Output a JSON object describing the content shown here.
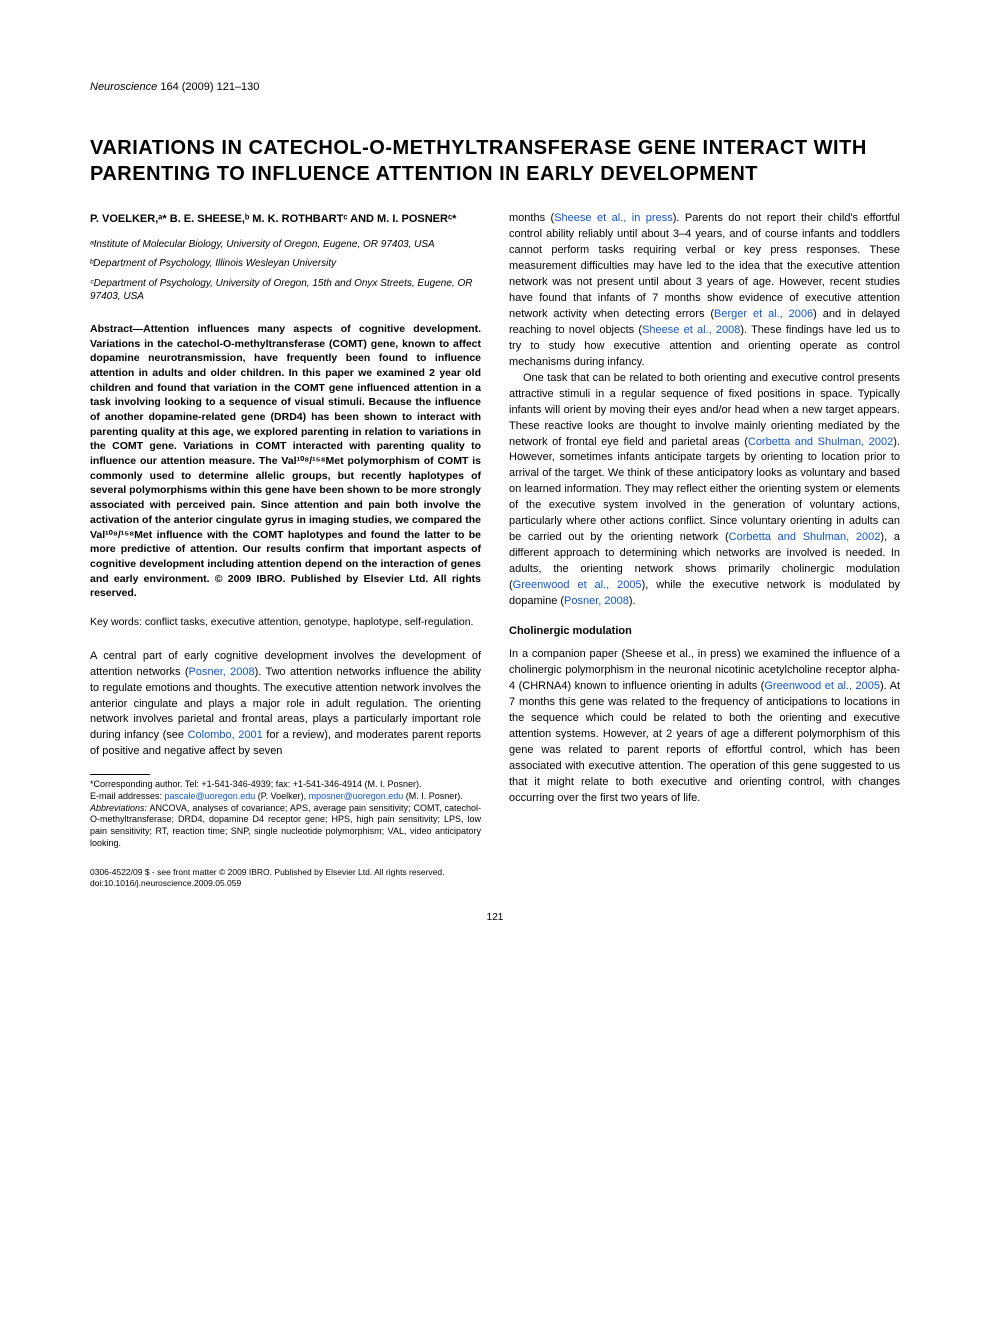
{
  "journal": {
    "name": "Neuroscience",
    "issue": "164 (2009) 121–130"
  },
  "title": "VARIATIONS IN CATECHOL-O-METHYLTRANSFERASE GENE INTERACT WITH PARENTING TO INFLUENCE ATTENTION IN EARLY DEVELOPMENT",
  "authors": "P. VOELKER,ᵃ* B. E. SHEESE,ᵇ M. K. ROTHBARTᶜ AND M. I. POSNERᶜ*",
  "affiliations": {
    "a": "ᵃInstitute of Molecular Biology, University of Oregon, Eugene, OR 97403, USA",
    "b": "ᵇDepartment of Psychology, Illinois Wesleyan University",
    "c": "ᶜDepartment of Psychology, University of Oregon, 15th and Onyx Streets, Eugene, OR 97403, USA"
  },
  "abstract": {
    "label": "Abstract—",
    "text": "Attention influences many aspects of cognitive development. Variations in the catechol-O-methyltransferase (COMT) gene, known to affect dopamine neurotransmission, have frequently been found to influence attention in adults and older children. In this paper we examined 2 year old children and found that variation in the COMT gene influenced attention in a task involving looking to a sequence of visual stimuli. Because the influence of another dopamine-related gene (DRD4) has been shown to interact with parenting quality at this age, we explored parenting in relation to variations in the COMT gene. Variations in COMT interacted with parenting quality to influence our attention measure. The Val¹⁰⁸/¹⁵⁸Met polymorphism of COMT is commonly used to determine allelic groups, but recently haplotypes of several polymorphisms within this gene have been shown to be more strongly associated with perceived pain. Since attention and pain both involve the activation of the anterior cingulate gyrus in imaging studies, we compared the Val¹⁰⁸/¹⁵⁸Met influence with the COMT haplotypes and found the latter to be more predictive of attention. Our results confirm that important aspects of cognitive development including attention depend on the interaction of genes and early environment. © 2009 IBRO. Published by Elsevier Ltd. All rights reserved."
  },
  "keywords": "Key words: conflict tasks, executive attention, genotype, haplotype, self-regulation.",
  "left_body": {
    "p1_a": "A central part of early cognitive development involves the development of attention networks (",
    "p1_cite1": "Posner, 2008",
    "p1_b": "). Two attention networks influence the ability to regulate emotions and thoughts. The executive attention network involves the anterior cingulate and plays a major role in adult regulation. The orienting network involves parietal and frontal areas, plays a particularly important role during infancy (see ",
    "p1_cite2": "Colombo, 2001",
    "p1_c": " for a review), and moderates parent reports of positive and negative affect by seven"
  },
  "footnotes": {
    "corr": "*Corresponding author. Tel: +1-541-346-4939; fax: +1-541-346-4914 (M. I. Posner).",
    "emails_label": "E-mail addresses: ",
    "email1": "pascale@uoregon.edu",
    "email1_who": " (P. Voelker), ",
    "email2": "mposner@uoregon.edu",
    "email2_who": " (M. I. Posner).",
    "abbr_label": "Abbreviations:",
    "abbr": " ANCOVA, analyses of covariance; APS, average pain sensitivity; COMT, catechol-O-methyltransferase; DRD4, dopamine D4 receptor gene; HPS, high pain sensitivity; LPS, low pain sensitivity; RT, reaction time; SNP, single nucleotide polymorphism; VAL, video anticipatory looking."
  },
  "right_body": {
    "p1_a": "months (",
    "p1_cite1": "Sheese et al., in press",
    "p1_b": "). Parents do not report their child's effortful control ability reliably until about 3–4 years, and of course infants and toddlers cannot perform tasks requiring verbal or key press responses. These measurement difficulties may have led to the idea that the executive attention network was not present until about 3 years of age. However, recent studies have found that infants of 7 months show evidence of executive attention network activity when detecting errors (",
    "p1_cite2": "Berger et al., 2006",
    "p1_c": ") and in delayed reaching to novel objects (",
    "p1_cite3": "Sheese et al., 2008",
    "p1_d": "). These findings have led us to try to study how executive attention and orienting operate as control mechanisms during infancy.",
    "p2_a": "One task that can be related to both orienting and executive control presents attractive stimuli in a regular sequence of fixed positions in space. Typically infants will orient by moving their eyes and/or head when a new target appears. These reactive looks are thought to involve mainly orienting mediated by the network of frontal eye field and parietal areas (",
    "p2_cite1": "Corbetta and Shulman, 2002",
    "p2_b": "). However, sometimes infants anticipate targets by orienting to location prior to arrival of the target. We think of these anticipatory looks as voluntary and based on learned information. They may reflect either the orienting system or elements of the executive system involved in the generation of voluntary actions, particularly where other actions conflict. Since voluntary orienting in adults can be carried out by the orienting network (",
    "p2_cite2": "Corbetta and Shulman, 2002",
    "p2_c": "), a different approach to determining which networks are involved is needed. In adults, the orienting network shows primarily cholinergic modulation (",
    "p2_cite3": "Greenwood et al., 2005",
    "p2_d": "), while the executive network is modulated by dopamine (",
    "p2_cite4": "Posner, 2008",
    "p2_e": ")."
  },
  "section1": {
    "heading": "Cholinergic modulation",
    "p1_a": "In a companion paper (Sheese et al., in press) we examined the influence of a cholinergic polymorphism in the neuronal nicotinic acetylcholine receptor alpha-4 (CHRNA4) known to influence orienting in adults (",
    "p1_cite1": "Greenwood et al., 2005",
    "p1_b": "). At 7 months this gene was related to the frequency of anticipations to locations in the sequence which could be related to both the orienting and executive attention systems. However, at 2 years of age a different polymorphism of this gene was related to parent reports of effortful control, which has been associated with executive attention. The operation of this gene suggested to us that it might relate to both executive and orienting control, with changes occurring over the first two years of life."
  },
  "footer": {
    "line1": "0306-4522/09 $ - see front matter © 2009 IBRO. Published by Elsevier Ltd. All rights reserved.",
    "line2": "doi:10.1016/j.neuroscience.2009.05.059"
  },
  "page_number": "121"
}
